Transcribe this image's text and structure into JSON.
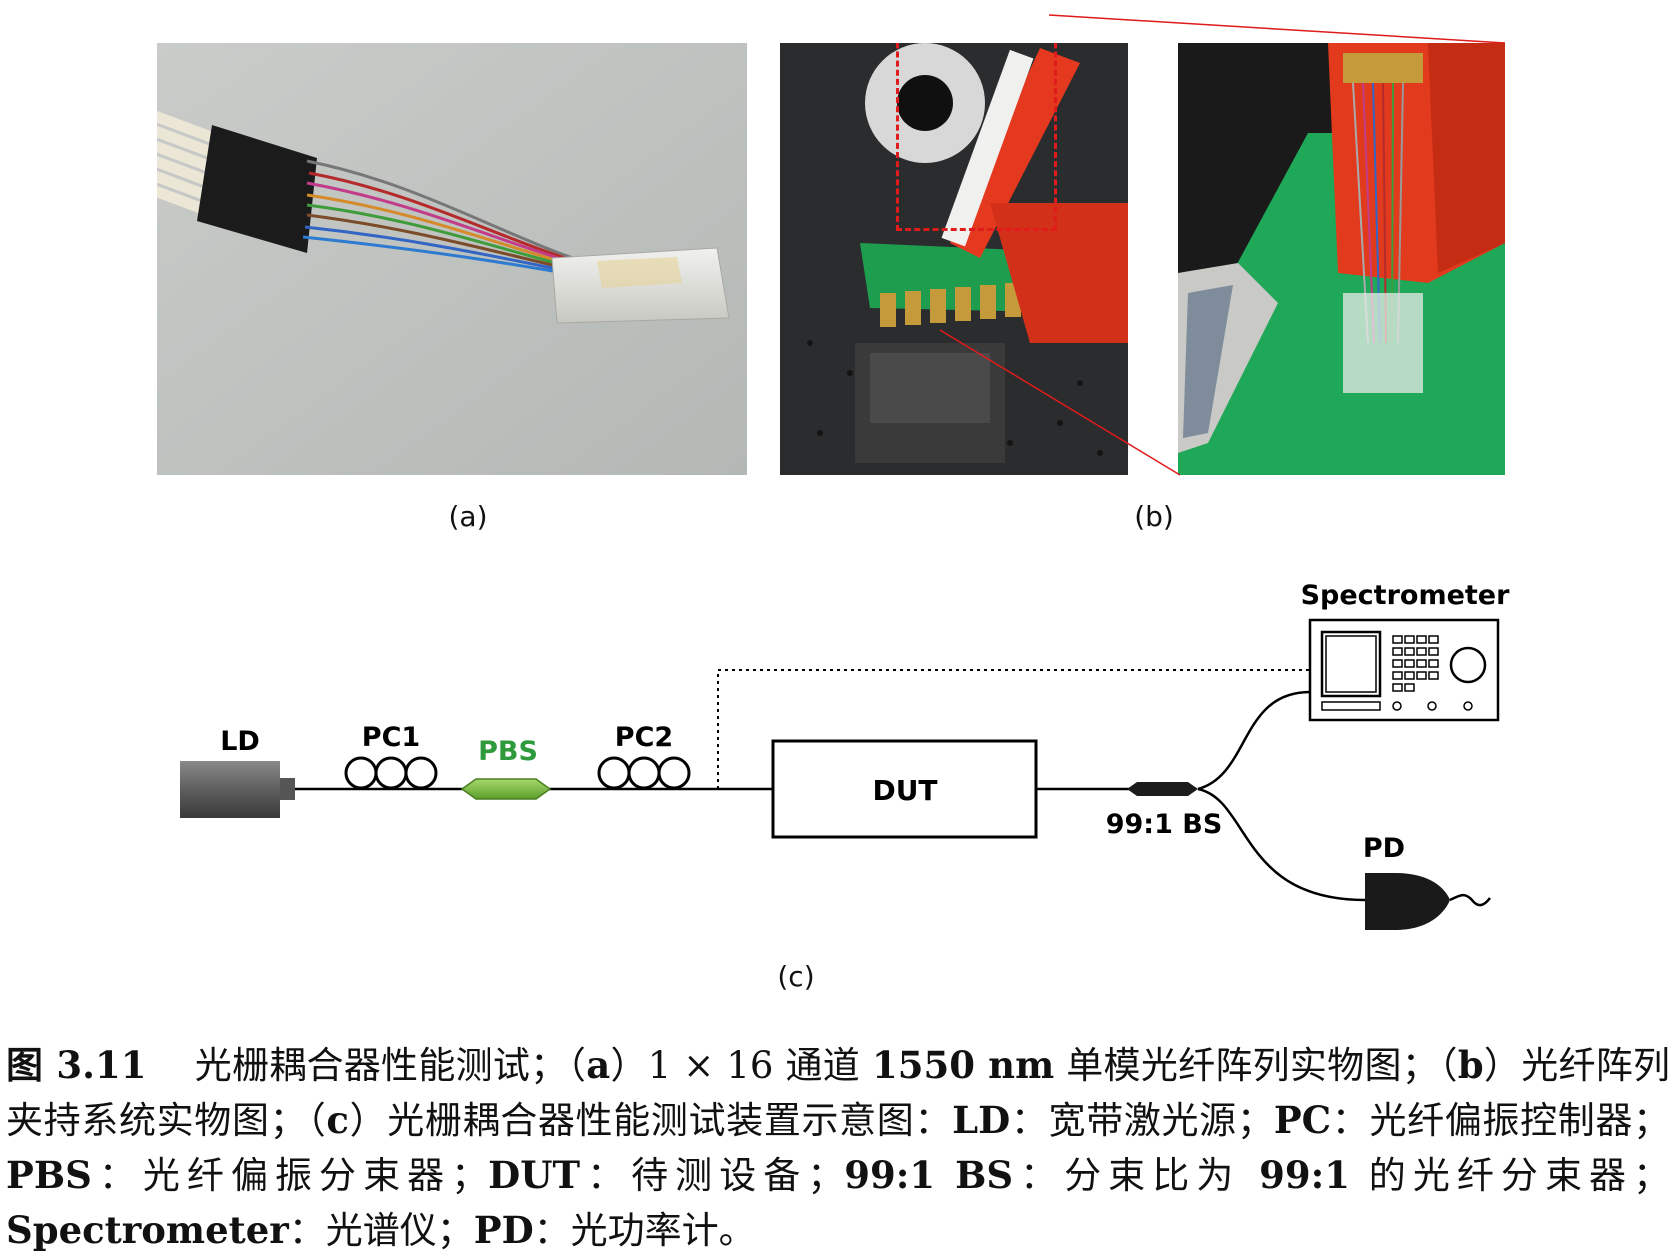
{
  "panels": {
    "a_label": "(a)",
    "b_label": "(b)",
    "c_label": "(c)"
  },
  "schematic": {
    "ld": "LD",
    "pc1": "PC1",
    "pbs": "PBS",
    "pc2": "PC2",
    "dut": "DUT",
    "bs": "99:1 BS",
    "spectrometer": "Spectrometer",
    "pd": "PD",
    "pbs_color": "#2e9a3c"
  },
  "caption": {
    "fig_no": "图 3.11",
    "title": "光栅耦合器性能测试；（",
    "a": "a",
    "a_pre": "）1 × 16 通道 ",
    "a_bold": "1550 nm",
    "a_post": " 单模光纤阵列实物图；（",
    "b": "b",
    "b_text": "）光纤阵列夹持系统实物图；（",
    "c": "c",
    "c_text": "）光栅耦合器性能测试装置示意图：",
    "ld_term": "LD",
    "ld_def": "：宽带激光源；",
    "pc_term": "PC",
    "pc_def": "：光纤偏振控制器；",
    "pbs_term": "PBS",
    "pbs_def": "：光纤偏振分束器；",
    "dut_term": "DUT",
    "dut_def": "：待测设备；",
    "bs_term": "99:1 BS",
    "bs_def_pre": "：分束比为 ",
    "bs_ratio": "99:1",
    "bs_def_post": " 的光纤分束器；",
    "spec_term": "Spectrometer",
    "spec_def": "：光谱仪；",
    "pd_term": "PD",
    "pd_def": "：光功率计。"
  }
}
